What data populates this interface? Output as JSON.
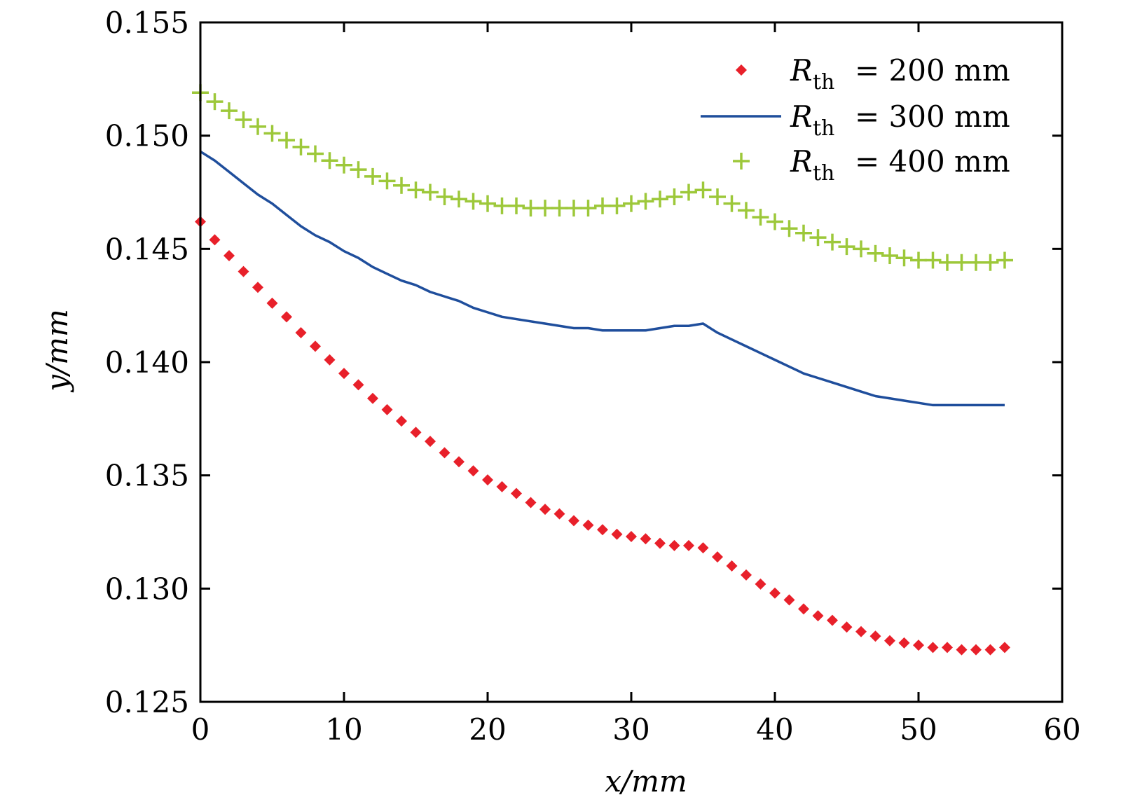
{
  "chart_data": {
    "type": "line",
    "title": "",
    "xlabel": "x/mm",
    "ylabel": "y/mm",
    "xlim": [
      0,
      60
    ],
    "ylim": [
      0.125,
      0.155
    ],
    "xticks": [
      "0",
      "10",
      "20",
      "30",
      "40",
      "50",
      "60"
    ],
    "yticks": [
      "0.125",
      "0.130",
      "0.135",
      "0.140",
      "0.145",
      "0.150",
      "0.155"
    ],
    "grid": false,
    "legend_position": "top-right",
    "series": [
      {
        "name": "R_th = 200 mm",
        "legend_symbol": "R",
        "legend_subscript": "th",
        "legend_value": "= 200 mm",
        "marker": "diamond",
        "color": "#e8202a",
        "x": [
          0,
          1,
          2,
          3,
          4,
          5,
          6,
          7,
          8,
          9,
          10,
          11,
          12,
          13,
          14,
          15,
          16,
          17,
          18,
          19,
          20,
          21,
          22,
          23,
          24,
          25,
          26,
          27,
          28,
          29,
          30,
          31,
          32,
          33,
          34,
          35,
          36,
          37,
          38,
          39,
          40,
          41,
          42,
          43,
          44,
          45,
          46,
          47,
          48,
          49,
          50,
          51,
          52,
          53,
          54,
          55,
          56
        ],
        "y": [
          0.1462,
          0.1454,
          0.1447,
          0.144,
          0.1433,
          0.1426,
          0.142,
          0.1413,
          0.1407,
          0.1401,
          0.1395,
          0.139,
          0.1384,
          0.1379,
          0.1374,
          0.1369,
          0.1365,
          0.136,
          0.1356,
          0.1352,
          0.1348,
          0.1345,
          0.1342,
          0.1338,
          0.1335,
          0.1333,
          0.133,
          0.1328,
          0.1326,
          0.1324,
          0.1323,
          0.1322,
          0.132,
          0.1319,
          0.1319,
          0.1318,
          0.1314,
          0.131,
          0.1306,
          0.1302,
          0.1298,
          0.1295,
          0.1291,
          0.1288,
          0.1286,
          0.1283,
          0.1281,
          0.1279,
          0.1277,
          0.1276,
          0.1275,
          0.1274,
          0.1274,
          0.1273,
          0.1273,
          0.1273,
          0.1274
        ]
      },
      {
        "name": "R_th = 300 mm",
        "legend_symbol": "R",
        "legend_subscript": "th",
        "legend_value": "= 300 mm",
        "marker": "line",
        "color": "#1f4e9c",
        "x": [
          0,
          1,
          2,
          3,
          4,
          5,
          6,
          7,
          8,
          9,
          10,
          11,
          12,
          13,
          14,
          15,
          16,
          17,
          18,
          19,
          20,
          21,
          22,
          23,
          24,
          25,
          26,
          27,
          28,
          29,
          30,
          31,
          32,
          33,
          34,
          35,
          36,
          37,
          38,
          39,
          40,
          41,
          42,
          43,
          44,
          45,
          46,
          47,
          48,
          49,
          50,
          51,
          52,
          53,
          54,
          55,
          56
        ],
        "y": [
          0.1493,
          0.1489,
          0.1484,
          0.1479,
          0.1474,
          0.147,
          0.1465,
          0.146,
          0.1456,
          0.1453,
          0.1449,
          0.1446,
          0.1442,
          0.1439,
          0.1436,
          0.1434,
          0.1431,
          0.1429,
          0.1427,
          0.1424,
          0.1422,
          0.142,
          0.1419,
          0.1418,
          0.1417,
          0.1416,
          0.1415,
          0.1415,
          0.1414,
          0.1414,
          0.1414,
          0.1414,
          0.1415,
          0.1416,
          0.1416,
          0.1417,
          0.1413,
          0.141,
          0.1407,
          0.1404,
          0.1401,
          0.1398,
          0.1395,
          0.1393,
          0.1391,
          0.1389,
          0.1387,
          0.1385,
          0.1384,
          0.1383,
          0.1382,
          0.1381,
          0.1381,
          0.1381,
          0.1381,
          0.1381,
          0.1381
        ]
      },
      {
        "name": "R_th = 400 mm",
        "legend_symbol": "R",
        "legend_subscript": "th",
        "legend_value": "= 400 mm",
        "marker": "plus",
        "color": "#9dc83a",
        "x": [
          0,
          1,
          2,
          3,
          4,
          5,
          6,
          7,
          8,
          9,
          10,
          11,
          12,
          13,
          14,
          15,
          16,
          17,
          18,
          19,
          20,
          21,
          22,
          23,
          24,
          25,
          26,
          27,
          28,
          29,
          30,
          31,
          32,
          33,
          34,
          35,
          36,
          37,
          38,
          39,
          40,
          41,
          42,
          43,
          44,
          45,
          46,
          47,
          48,
          49,
          50,
          51,
          52,
          53,
          54,
          55,
          56
        ],
        "y": [
          0.1519,
          0.1515,
          0.1511,
          0.1507,
          0.1504,
          0.1501,
          0.1498,
          0.1495,
          0.1492,
          0.1489,
          0.1487,
          0.1485,
          0.1482,
          0.148,
          0.1478,
          0.1476,
          0.1475,
          0.1473,
          0.1472,
          0.1471,
          0.147,
          0.1469,
          0.1469,
          0.1468,
          0.1468,
          0.1468,
          0.1468,
          0.1468,
          0.1469,
          0.1469,
          0.147,
          0.1471,
          0.1472,
          0.1473,
          0.1475,
          0.1476,
          0.1473,
          0.147,
          0.1467,
          0.1464,
          0.1462,
          0.1459,
          0.1457,
          0.1455,
          0.1453,
          0.1451,
          0.145,
          0.1448,
          0.1447,
          0.1446,
          0.1445,
          0.1445,
          0.1444,
          0.1444,
          0.1444,
          0.1444,
          0.1445
        ]
      }
    ]
  }
}
